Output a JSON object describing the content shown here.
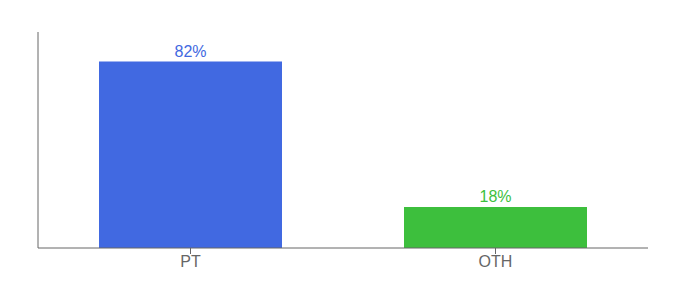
{
  "chart_data": {
    "type": "bar",
    "categories": [
      "PT",
      "OTH"
    ],
    "values": [
      82,
      18
    ],
    "value_labels": [
      "82%",
      "18%"
    ],
    "colors": [
      "#4169E1",
      "#3DBF3D"
    ],
    "ylim": [
      0,
      95
    ],
    "data_labels": true,
    "tick_labels": "x",
    "grid": false
  }
}
